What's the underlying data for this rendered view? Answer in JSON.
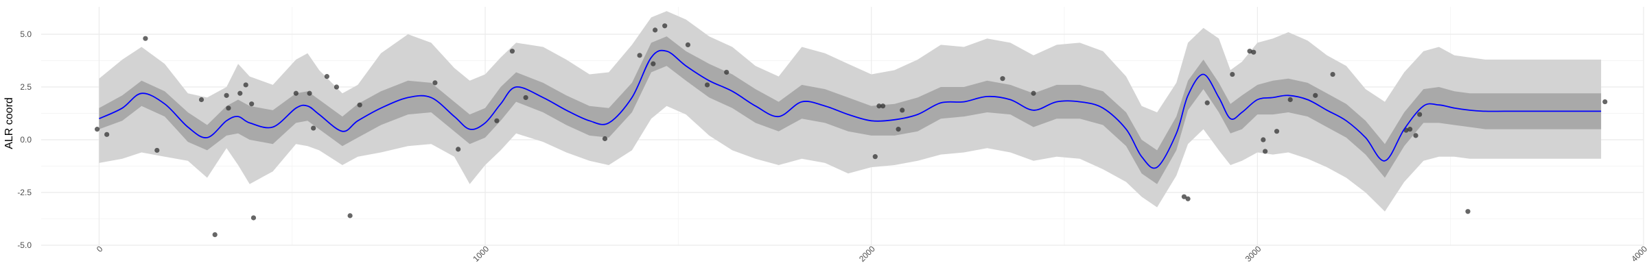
{
  "chart_data": {
    "type": "line",
    "title": "",
    "xlabel": "",
    "ylabel": "ALR coord",
    "xlim": [
      -150,
      4000
    ],
    "ylim": [
      -5,
      6.3
    ],
    "grid": true,
    "legend": "none",
    "colors": {
      "mean_line": "#0000ff",
      "band_inner": "#a9a9a9",
      "band_outer": "#d3d3d3",
      "points": "#333333",
      "grid_major": "#ebebeb",
      "grid_minor": "#f5f5f5"
    },
    "x_ticks": [
      {
        "value": 0,
        "label": "0"
      },
      {
        "value": 1000,
        "label": "1000"
      },
      {
        "value": 2000,
        "label": "2000"
      },
      {
        "value": 3000,
        "label": "3000"
      },
      {
        "value": 4000,
        "label": "4000"
      }
    ],
    "y_ticks": [
      {
        "value": -5,
        "label": "-5.0"
      },
      {
        "value": -2.5,
        "label": "-2.5"
      },
      {
        "value": 0,
        "label": "0.0"
      },
      {
        "value": 2.5,
        "label": "2.5"
      },
      {
        "value": 5,
        "label": "5.0"
      }
    ],
    "series": [
      {
        "x": [
          0,
          60,
          110,
          170,
          230,
          280,
          330,
          360,
          390,
          450,
          510,
          540,
          570,
          630,
          670,
          730,
          800,
          860,
          920,
          960,
          1000,
          1040,
          1080,
          1150,
          1210,
          1270,
          1320,
          1380,
          1430,
          1470,
          1520,
          1580,
          1640,
          1700,
          1760,
          1820,
          1880,
          1940,
          2000,
          2060,
          2120,
          2180,
          2240,
          2300,
          2360,
          2420,
          2480,
          2540,
          2600,
          2660,
          2700,
          2740,
          2790,
          2820,
          2860,
          2900,
          2930,
          2960,
          3000,
          3040,
          3080,
          3130,
          3180,
          3230,
          3280,
          3330,
          3380,
          3430,
          3470,
          3510,
          3550,
          3590,
          3640,
          3700,
          3760,
          3820,
          3890
        ],
        "mean": [
          1.0,
          1.5,
          2.2,
          1.7,
          0.6,
          0.1,
          0.9,
          1.1,
          0.8,
          0.6,
          1.5,
          1.6,
          1.2,
          0.4,
          0.9,
          1.5,
          2.0,
          2.0,
          1.1,
          0.5,
          0.8,
          1.7,
          2.5,
          2.0,
          1.4,
          0.9,
          0.8,
          2.0,
          3.9,
          4.2,
          3.5,
          2.8,
          2.3,
          1.6,
          1.1,
          1.8,
          1.6,
          1.2,
          0.9,
          0.95,
          1.2,
          1.75,
          1.8,
          2.05,
          1.9,
          1.4,
          1.8,
          1.8,
          1.5,
          0.5,
          -0.8,
          -1.3,
          0.3,
          2.1,
          3.1,
          2.0,
          1.0,
          1.3,
          1.9,
          2.0,
          2.1,
          1.9,
          1.4,
          0.9,
          0.1,
          -1.0,
          0.5,
          1.6,
          1.65,
          1.5,
          1.4,
          1.35,
          1.35,
          1.35,
          1.35,
          1.35,
          1.35
        ],
        "inner_lower": [
          0.5,
          0.9,
          1.6,
          1.1,
          -0.1,
          -0.5,
          0.2,
          0.3,
          0.0,
          -0.2,
          0.8,
          0.9,
          0.5,
          -0.3,
          0.1,
          0.7,
          1.2,
          1.3,
          0.4,
          -0.2,
          0.1,
          0.9,
          1.8,
          1.3,
          0.7,
          0.2,
          0.1,
          1.3,
          3.2,
          3.5,
          2.8,
          2.0,
          1.5,
          0.8,
          0.4,
          1.0,
          0.8,
          0.4,
          0.2,
          0.2,
          0.4,
          1.0,
          1.1,
          1.3,
          1.2,
          0.6,
          1.0,
          1.0,
          0.7,
          -0.3,
          -1.6,
          -2.1,
          -0.5,
          1.4,
          2.4,
          1.3,
          0.3,
          0.5,
          1.2,
          1.2,
          1.3,
          1.1,
          0.6,
          0.1,
          -0.7,
          -1.8,
          -0.3,
          0.8,
          0.8,
          0.7,
          0.6,
          0.5,
          0.5,
          0.5,
          0.5,
          0.5,
          0.5
        ],
        "inner_upper": [
          1.5,
          2.1,
          2.8,
          2.3,
          1.3,
          0.7,
          1.6,
          1.9,
          1.6,
          1.4,
          2.2,
          2.3,
          1.9,
          1.1,
          1.7,
          2.3,
          2.8,
          2.7,
          1.8,
          1.2,
          1.5,
          2.5,
          3.2,
          2.7,
          2.1,
          1.6,
          1.5,
          2.7,
          4.6,
          4.9,
          4.2,
          3.6,
          3.1,
          2.4,
          1.8,
          2.6,
          2.4,
          2.0,
          1.6,
          1.7,
          2.0,
          2.5,
          2.5,
          2.8,
          2.6,
          2.2,
          2.6,
          2.6,
          2.3,
          1.3,
          0.0,
          -0.5,
          1.1,
          2.8,
          3.8,
          2.7,
          1.7,
          2.1,
          2.6,
          2.8,
          2.9,
          2.7,
          2.2,
          1.7,
          0.9,
          -0.2,
          1.3,
          2.4,
          2.5,
          2.3,
          2.2,
          2.2,
          2.2,
          2.2,
          2.2,
          2.2,
          2.2
        ],
        "outer_lower": [
          -1.1,
          -0.9,
          -0.6,
          -0.8,
          -1.0,
          -1.8,
          -0.4,
          -1.2,
          -2.1,
          -1.5,
          -0.2,
          -0.3,
          -0.5,
          -1.2,
          -0.8,
          -0.6,
          -0.3,
          -0.2,
          -0.8,
          -2.1,
          -1.2,
          -0.5,
          0.3,
          -0.1,
          -0.6,
          -1.0,
          -1.2,
          -0.5,
          1.0,
          1.6,
          1.2,
          0.2,
          -0.5,
          -0.9,
          -1.2,
          -0.9,
          -1.1,
          -1.6,
          -1.3,
          -1.2,
          -1.0,
          -0.7,
          -0.6,
          -0.4,
          -0.6,
          -1.0,
          -0.8,
          -0.9,
          -1.4,
          -2.0,
          -2.7,
          -3.2,
          -1.7,
          -0.2,
          0.5,
          -0.5,
          -1.2,
          -1.0,
          -0.6,
          -0.7,
          -0.6,
          -0.9,
          -1.3,
          -1.8,
          -2.5,
          -3.4,
          -2.0,
          -1.0,
          -0.8,
          -0.8,
          -0.9,
          -0.9,
          -0.9,
          -0.9,
          -0.9,
          -0.9,
          -0.9
        ],
        "outer_upper": [
          2.9,
          3.8,
          4.4,
          3.6,
          2.2,
          2.0,
          2.5,
          3.6,
          3.0,
          2.6,
          3.8,
          4.1,
          3.3,
          2.2,
          2.6,
          4.1,
          5.0,
          4.6,
          3.4,
          2.8,
          3.1,
          3.9,
          4.6,
          4.4,
          3.8,
          3.1,
          3.2,
          4.5,
          5.8,
          6.1,
          5.7,
          4.9,
          4.4,
          3.5,
          3.0,
          4.4,
          4.1,
          3.6,
          3.1,
          3.3,
          3.8,
          4.5,
          4.4,
          4.8,
          4.6,
          4.0,
          4.5,
          4.6,
          4.2,
          3.0,
          1.6,
          1.3,
          2.7,
          4.6,
          5.3,
          4.8,
          3.3,
          3.7,
          4.6,
          4.8,
          5.1,
          4.7,
          4.0,
          3.5,
          2.4,
          1.8,
          3.2,
          4.2,
          4.4,
          4.0,
          3.9,
          3.8,
          3.8,
          3.8,
          3.8,
          3.8,
          3.8
        ]
      }
    ],
    "points": [
      {
        "x": -5,
        "y": 0.5
      },
      {
        "x": 20,
        "y": 0.25
      },
      {
        "x": 120,
        "y": 4.8
      },
      {
        "x": 150,
        "y": -0.5
      },
      {
        "x": 265,
        "y": 1.9
      },
      {
        "x": 300,
        "y": -4.5
      },
      {
        "x": 330,
        "y": 2.1
      },
      {
        "x": 335,
        "y": 1.5
      },
      {
        "x": 365,
        "y": 2.2
      },
      {
        "x": 380,
        "y": 2.6
      },
      {
        "x": 395,
        "y": 1.7
      },
      {
        "x": 400,
        "y": -3.7
      },
      {
        "x": 510,
        "y": 2.2
      },
      {
        "x": 545,
        "y": 2.2
      },
      {
        "x": 555,
        "y": 0.55
      },
      {
        "x": 590,
        "y": 3.0
      },
      {
        "x": 615,
        "y": 2.5
      },
      {
        "x": 650,
        "y": -3.6
      },
      {
        "x": 675,
        "y": 1.65
      },
      {
        "x": 870,
        "y": 2.7
      },
      {
        "x": 930,
        "y": -0.45
      },
      {
        "x": 1030,
        "y": 0.9
      },
      {
        "x": 1070,
        "y": 4.2
      },
      {
        "x": 1105,
        "y": 2.0
      },
      {
        "x": 1310,
        "y": 0.05
      },
      {
        "x": 1400,
        "y": 4.0
      },
      {
        "x": 1435,
        "y": 3.6
      },
      {
        "x": 1440,
        "y": 5.2
      },
      {
        "x": 1465,
        "y": 5.4
      },
      {
        "x": 1525,
        "y": 4.5
      },
      {
        "x": 1575,
        "y": 2.6
      },
      {
        "x": 1625,
        "y": 3.2
      },
      {
        "x": 2010,
        "y": -0.8
      },
      {
        "x": 2020,
        "y": 1.6
      },
      {
        "x": 2030,
        "y": 1.6
      },
      {
        "x": 2070,
        "y": 0.5
      },
      {
        "x": 2080,
        "y": 1.4
      },
      {
        "x": 2340,
        "y": 2.9
      },
      {
        "x": 2420,
        "y": 2.2
      },
      {
        "x": 2810,
        "y": -2.7
      },
      {
        "x": 2820,
        "y": -2.8
      },
      {
        "x": 2870,
        "y": 1.75
      },
      {
        "x": 2935,
        "y": 3.1
      },
      {
        "x": 2980,
        "y": 4.2
      },
      {
        "x": 2990,
        "y": 4.15
      },
      {
        "x": 3015,
        "y": 0.0
      },
      {
        "x": 3020,
        "y": -0.55
      },
      {
        "x": 3050,
        "y": 0.4
      },
      {
        "x": 3085,
        "y": 1.9
      },
      {
        "x": 3150,
        "y": 2.1
      },
      {
        "x": 3195,
        "y": 3.1
      },
      {
        "x": 3385,
        "y": 0.45
      },
      {
        "x": 3395,
        "y": 0.5
      },
      {
        "x": 3410,
        "y": 0.2
      },
      {
        "x": 3420,
        "y": 1.2
      },
      {
        "x": 3545,
        "y": -3.4
      },
      {
        "x": 3900,
        "y": 1.8
      }
    ]
  }
}
